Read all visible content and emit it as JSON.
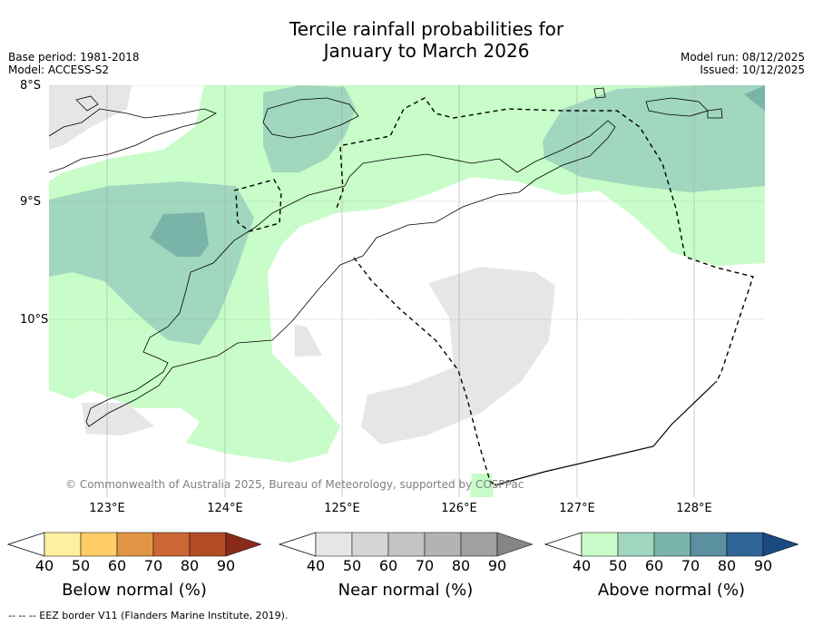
{
  "title_line1": "Tercile rainfall probabilities for",
  "title_line2": "January to March 2026",
  "meta": {
    "base_period": "Base period: 1981-2018",
    "model": "Model: ACCESS-S2",
    "model_run": "Model run: 08/12/2025",
    "issued": "Issued: 10/12/2025"
  },
  "map": {
    "lat_labels": [
      "8°S",
      "9°S",
      "10°S"
    ],
    "lon_labels": [
      "123°E",
      "124°E",
      "125°E",
      "126°E",
      "127°E",
      "128°E"
    ],
    "copyright": "© Commonwealth of Australia 2025, Bureau of Meteorology, supported by COSPPac",
    "colors": {
      "above_40": "#c8fcc8",
      "above_50": "#a1d6bf",
      "above_60": "#7ab4a9",
      "near_40": "#e6e6e6",
      "land_line": "#000000"
    }
  },
  "legends": [
    {
      "title": "Below normal (%)",
      "ticks": [
        "40",
        "50",
        "60",
        "70",
        "80",
        "90"
      ],
      "colors": [
        "#fff0a0",
        "#ffcc66",
        "#e09545",
        "#cc6633",
        "#b24d28",
        "#8b2a1a"
      ]
    },
    {
      "title": "Near normal (%)",
      "ticks": [
        "40",
        "50",
        "60",
        "70",
        "80",
        "90"
      ],
      "colors": [
        "#e6e6e6",
        "#d6d6d6",
        "#c4c4c4",
        "#b3b3b3",
        "#a0a0a0",
        "#858585"
      ]
    },
    {
      "title": "Above normal (%)",
      "ticks": [
        "40",
        "50",
        "60",
        "70",
        "80",
        "90"
      ],
      "colors": [
        "#c8fcc8",
        "#a1d6bf",
        "#7ab4a9",
        "#5a90a0",
        "#2f6496",
        "#1a4a80"
      ]
    }
  ],
  "footer": "--  --  -- EEZ border V11 (Flanders Marine Institute, 2019)."
}
